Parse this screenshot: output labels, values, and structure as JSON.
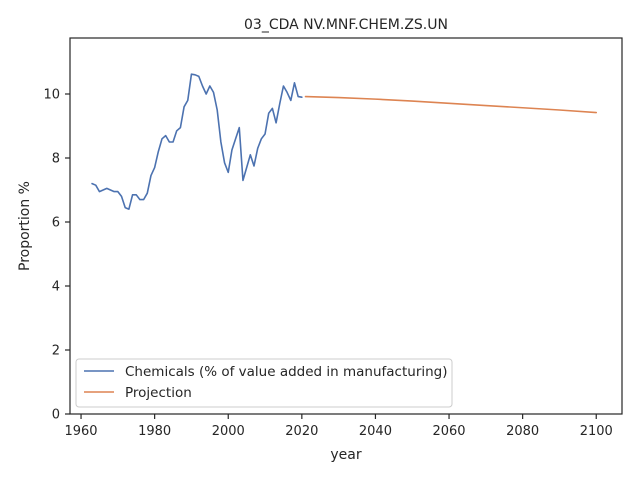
{
  "chart_data": {
    "type": "line",
    "title": "03_CDA NV.MNF.CHEM.ZS.UN",
    "xlabel": "year",
    "ylabel": "Proportion %",
    "xlim": [
      1957,
      2107
    ],
    "ylim": [
      0,
      11.75
    ],
    "xticks": [
      1960,
      1980,
      2000,
      2020,
      2040,
      2060,
      2080,
      2100
    ],
    "yticks": [
      0,
      2,
      4,
      6,
      8,
      10
    ],
    "grid": false,
    "legend_position": "lower-left",
    "series": [
      {
        "name": "Chemicals (% of value added in manufacturing)",
        "color": "#4c72b0",
        "x": [
          1963,
          1964,
          1965,
          1966,
          1967,
          1968,
          1969,
          1970,
          1971,
          1972,
          1973,
          1974,
          1975,
          1976,
          1977,
          1978,
          1979,
          1980,
          1981,
          1982,
          1983,
          1984,
          1985,
          1986,
          1987,
          1988,
          1989,
          1990,
          1991,
          1992,
          1993,
          1994,
          1995,
          1996,
          1997,
          1998,
          1999,
          2000,
          2001,
          2002,
          2003,
          2004,
          2005,
          2006,
          2007,
          2008,
          2009,
          2010,
          2011,
          2012,
          2013,
          2014,
          2015,
          2016,
          2017,
          2018,
          2019,
          2020
        ],
        "y": [
          7.2,
          7.15,
          6.95,
          7.0,
          7.05,
          7.0,
          6.95,
          6.95,
          6.8,
          6.45,
          6.4,
          6.85,
          6.85,
          6.7,
          6.7,
          6.9,
          7.45,
          7.7,
          8.2,
          8.6,
          8.7,
          8.5,
          8.5,
          8.85,
          8.95,
          9.6,
          9.8,
          10.62,
          10.6,
          10.55,
          10.25,
          10.0,
          10.25,
          10.05,
          9.5,
          8.5,
          7.85,
          7.55,
          8.25,
          8.6,
          8.95,
          7.3,
          7.7,
          8.1,
          7.75,
          8.3,
          8.6,
          8.75,
          9.4,
          9.55,
          9.1,
          9.7,
          10.25,
          10.05,
          9.8,
          10.35,
          9.92,
          9.9
        ]
      },
      {
        "name": "Projection",
        "color": "#dd8452",
        "x": [
          2021,
          2030,
          2040,
          2050,
          2060,
          2070,
          2080,
          2090,
          2100
        ],
        "y": [
          9.92,
          9.89,
          9.84,
          9.78,
          9.71,
          9.64,
          9.57,
          9.5,
          9.42
        ]
      }
    ]
  }
}
